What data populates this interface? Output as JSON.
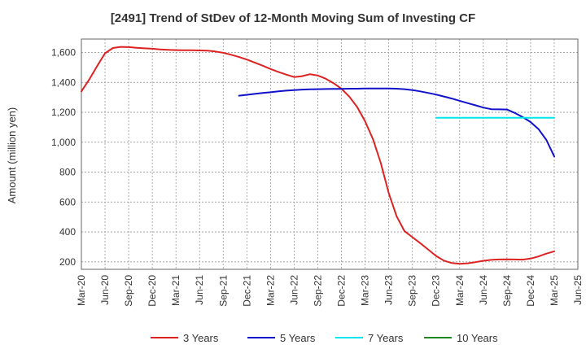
{
  "chart_data": {
    "type": "line",
    "title": "[2491]  Trend of StDev of 12-Month Moving Sum of Investing CF",
    "xlabel": "",
    "ylabel": "Amount (million yen)",
    "ylim": [
      150,
      1690
    ],
    "yticks": [
      200,
      400,
      600,
      800,
      1000,
      1200,
      1400,
      1600
    ],
    "ytick_labels": [
      "200",
      "400",
      "600",
      "800",
      "1,000",
      "1,200",
      "1,400",
      "1,600"
    ],
    "xlim": [
      "2020-03",
      "2025-06"
    ],
    "xticks": [
      "Mar-20",
      "Jun-20",
      "Sep-20",
      "Dec-20",
      "Mar-21",
      "Jun-21",
      "Sep-21",
      "Dec-21",
      "Mar-22",
      "Jun-22",
      "Sep-22",
      "Dec-22",
      "Mar-23",
      "Jun-23",
      "Sep-23",
      "Dec-23",
      "Mar-24",
      "Jun-24",
      "Sep-24",
      "Dec-24",
      "Mar-25",
      "Jun-25"
    ],
    "grid": true,
    "legend_position": "bottom",
    "series": [
      {
        "name": "3 Years",
        "color": "#dd2222",
        "points": [
          [
            "2020-03",
            1340
          ],
          [
            "2020-04",
            1420
          ],
          [
            "2020-05",
            1510
          ],
          [
            "2020-06",
            1595
          ],
          [
            "2020-07",
            1630
          ],
          [
            "2020-08",
            1638
          ],
          [
            "2020-09",
            1636
          ],
          [
            "2020-10",
            1632
          ],
          [
            "2020-11",
            1628
          ],
          [
            "2020-12",
            1625
          ],
          [
            "2021-01",
            1621
          ],
          [
            "2021-02",
            1618
          ],
          [
            "2021-03",
            1616
          ],
          [
            "2021-04",
            1615
          ],
          [
            "2021-05",
            1615
          ],
          [
            "2021-06",
            1614
          ],
          [
            "2021-07",
            1612
          ],
          [
            "2021-08",
            1607
          ],
          [
            "2021-09",
            1598
          ],
          [
            "2021-10",
            1585
          ],
          [
            "2021-11",
            1570
          ],
          [
            "2021-12",
            1553
          ],
          [
            "2022-01",
            1533
          ],
          [
            "2022-02",
            1512
          ],
          [
            "2022-03",
            1490
          ],
          [
            "2022-04",
            1470
          ],
          [
            "2022-05",
            1452
          ],
          [
            "2022-06",
            1436
          ],
          [
            "2022-07",
            1442
          ],
          [
            "2022-08",
            1455
          ],
          [
            "2022-09",
            1446
          ],
          [
            "2022-10",
            1425
          ],
          [
            "2022-11",
            1395
          ],
          [
            "2022-12",
            1358
          ],
          [
            "2023-01",
            1305
          ],
          [
            "2023-02",
            1235
          ],
          [
            "2023-03",
            1140
          ],
          [
            "2023-04",
            1020
          ],
          [
            "2023-05",
            860
          ],
          [
            "2023-06",
            660
          ],
          [
            "2023-07",
            505
          ],
          [
            "2023-08",
            405
          ],
          [
            "2023-09",
            365
          ],
          [
            "2023-10",
            325
          ],
          [
            "2023-11",
            283
          ],
          [
            "2023-12",
            240
          ],
          [
            "2024-01",
            208
          ],
          [
            "2024-02",
            192
          ],
          [
            "2024-03",
            187
          ],
          [
            "2024-04",
            190
          ],
          [
            "2024-05",
            198
          ],
          [
            "2024-06",
            207
          ],
          [
            "2024-07",
            213
          ],
          [
            "2024-08",
            216
          ],
          [
            "2024-09",
            217
          ],
          [
            "2024-10",
            216
          ],
          [
            "2024-11",
            215
          ],
          [
            "2024-12",
            222
          ],
          [
            "2025-01",
            236
          ],
          [
            "2025-02",
            255
          ],
          [
            "2025-03",
            270
          ]
        ]
      },
      {
        "name": "5 Years",
        "color": "#1111cc",
        "points": [
          [
            "2021-11",
            1311
          ],
          [
            "2021-12",
            1317
          ],
          [
            "2022-01",
            1323
          ],
          [
            "2022-02",
            1329
          ],
          [
            "2022-03",
            1334
          ],
          [
            "2022-04",
            1340
          ],
          [
            "2022-05",
            1345
          ],
          [
            "2022-06",
            1349
          ],
          [
            "2022-07",
            1352
          ],
          [
            "2022-08",
            1354
          ],
          [
            "2022-09",
            1355
          ],
          [
            "2022-10",
            1356
          ],
          [
            "2022-11",
            1357
          ],
          [
            "2022-12",
            1357
          ],
          [
            "2023-01",
            1358
          ],
          [
            "2023-02",
            1358
          ],
          [
            "2023-03",
            1359
          ],
          [
            "2023-04",
            1359
          ],
          [
            "2023-05",
            1359
          ],
          [
            "2023-06",
            1359
          ],
          [
            "2023-07",
            1358
          ],
          [
            "2023-08",
            1355
          ],
          [
            "2023-09",
            1349
          ],
          [
            "2023-10",
            1340
          ],
          [
            "2023-11",
            1330
          ],
          [
            "2023-12",
            1319
          ],
          [
            "2024-01",
            1306
          ],
          [
            "2024-02",
            1292
          ],
          [
            "2024-03",
            1277
          ],
          [
            "2024-04",
            1262
          ],
          [
            "2024-05",
            1247
          ],
          [
            "2024-06",
            1232
          ],
          [
            "2024-07",
            1221
          ],
          [
            "2024-08",
            1220
          ],
          [
            "2024-09",
            1219
          ],
          [
            "2024-10",
            1196
          ],
          [
            "2024-11",
            1168
          ],
          [
            "2024-12",
            1135
          ],
          [
            "2025-01",
            1088
          ],
          [
            "2025-02",
            1015
          ],
          [
            "2025-03",
            905
          ]
        ]
      },
      {
        "name": "7 Years",
        "color": "#00e5ee",
        "points": [
          [
            "2023-12",
            1163
          ],
          [
            "2024-03",
            1163
          ],
          [
            "2024-06",
            1163
          ],
          [
            "2024-09",
            1163
          ],
          [
            "2024-12",
            1163
          ],
          [
            "2025-03",
            1163
          ]
        ]
      },
      {
        "name": "10 Years",
        "color": "#228822",
        "points": []
      }
    ]
  }
}
